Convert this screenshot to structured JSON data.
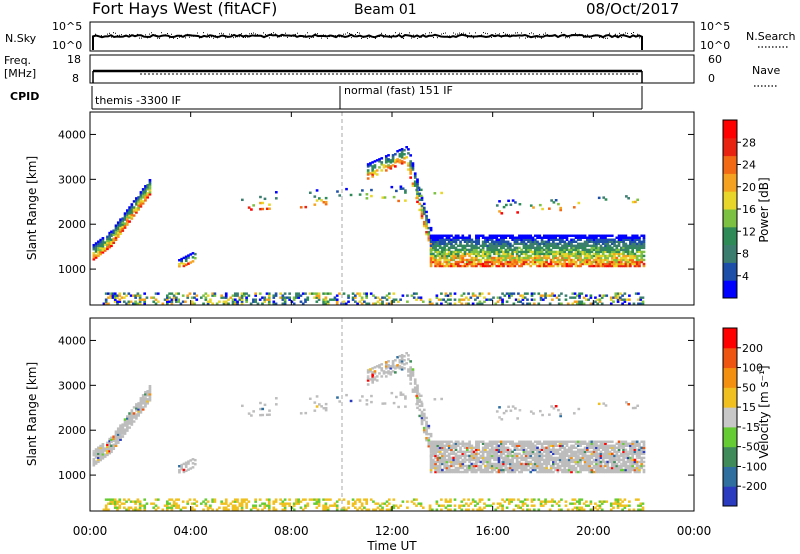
{
  "header": {
    "station": "Fort Hays West (fitACF)",
    "beam": "Beam 01",
    "date": "08/Oct/2017"
  },
  "summary_panels": {
    "nsky_label": "N.Sky",
    "nsky_ticks": [
      "10^5",
      "10^0"
    ],
    "nsearch_label": "N.Search",
    "nsearch_ticks": [
      "10^5",
      "10^0"
    ],
    "freq_label": "Freq.",
    "freq_unit": "[MHz]",
    "freq_ticks": [
      "18",
      "8"
    ],
    "nave_label": "Nave",
    "nave_ticks": [
      "60",
      "0"
    ],
    "cpid_label": "CPID",
    "cpid_segments": [
      {
        "label": "themis -3300 IF",
        "start_hour": 0
      },
      {
        "label": "normal (fast) 151 IF",
        "start_hour": 10
      }
    ]
  },
  "x_axis": {
    "label": "Time UT",
    "ticks": [
      "00:00",
      "04:00",
      "08:00",
      "12:00",
      "16:00",
      "20:00",
      "00:00"
    ],
    "range_hours": [
      0,
      24
    ]
  },
  "chart_data": [
    {
      "type": "heatmap",
      "panel": "power",
      "ylabel": "Slant Range [km]",
      "yticks": [
        "4000",
        "3000",
        "2000",
        "1000"
      ],
      "ylim": [
        200,
        4500
      ],
      "xlim": [
        0,
        24
      ],
      "colorbar": {
        "label": "Power [dB]",
        "ticks": [
          "28",
          "24",
          "20",
          "16",
          "12",
          "8",
          "4"
        ],
        "colors": [
          "#0000ff",
          "#1e4fa8",
          "#3b7d6e",
          "#2e8b57",
          "#7cc142",
          "#e9d62a",
          "#f4a21f",
          "#f26a14",
          "#e82410",
          "#ff0000"
        ]
      }
    },
    {
      "type": "heatmap",
      "panel": "velocity",
      "ylabel": "Slant Range [km]",
      "yticks": [
        "4000",
        "3000",
        "2000",
        "1000"
      ],
      "ylim": [
        200,
        4500
      ],
      "xlim": [
        0,
        24
      ],
      "colorbar": {
        "label": "Velocity [m s⁻¹]",
        "ticks": [
          "200",
          "100",
          "50",
          "15",
          "-15",
          "-50",
          "-100",
          "-200"
        ],
        "colors": [
          "#2a3bbf",
          "#2e6fa0",
          "#3f8c5a",
          "#66cc33",
          "#c8c8c8",
          "#f0c020",
          "#f49010",
          "#ee5510",
          "#ff0000"
        ]
      }
    }
  ],
  "colors": {
    "ground_scatter": "#bdbdbd",
    "frame": "#000000"
  }
}
